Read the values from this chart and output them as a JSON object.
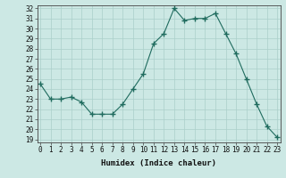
{
  "x": [
    0,
    1,
    2,
    3,
    4,
    5,
    6,
    7,
    8,
    9,
    10,
    11,
    12,
    13,
    14,
    15,
    16,
    17,
    18,
    19,
    20,
    21,
    22,
    23
  ],
  "y": [
    24.5,
    23.0,
    23.0,
    23.2,
    22.7,
    21.5,
    21.5,
    21.5,
    22.5,
    24.0,
    25.5,
    28.5,
    29.5,
    32.0,
    30.8,
    31.0,
    31.0,
    31.5,
    29.5,
    27.5,
    25.0,
    22.5,
    20.3,
    19.2
  ],
  "line_color": "#1f6b5e",
  "marker": "+",
  "marker_size": 4,
  "bg_color": "#cce8e4",
  "grid_color": "#aacfca",
  "xlabel": "Humidex (Indice chaleur)",
  "ylim_min": 19,
  "ylim_max": 32,
  "xlim_min": 0,
  "xlim_max": 23,
  "yticks": [
    19,
    20,
    21,
    22,
    23,
    24,
    25,
    26,
    27,
    28,
    29,
    30,
    31,
    32
  ],
  "xticks": [
    0,
    1,
    2,
    3,
    4,
    5,
    6,
    7,
    8,
    9,
    10,
    11,
    12,
    13,
    14,
    15,
    16,
    17,
    18,
    19,
    20,
    21,
    22,
    23
  ],
  "tick_color": "#111111",
  "tick_fontsize": 5.5,
  "xlabel_fontsize": 6.5
}
